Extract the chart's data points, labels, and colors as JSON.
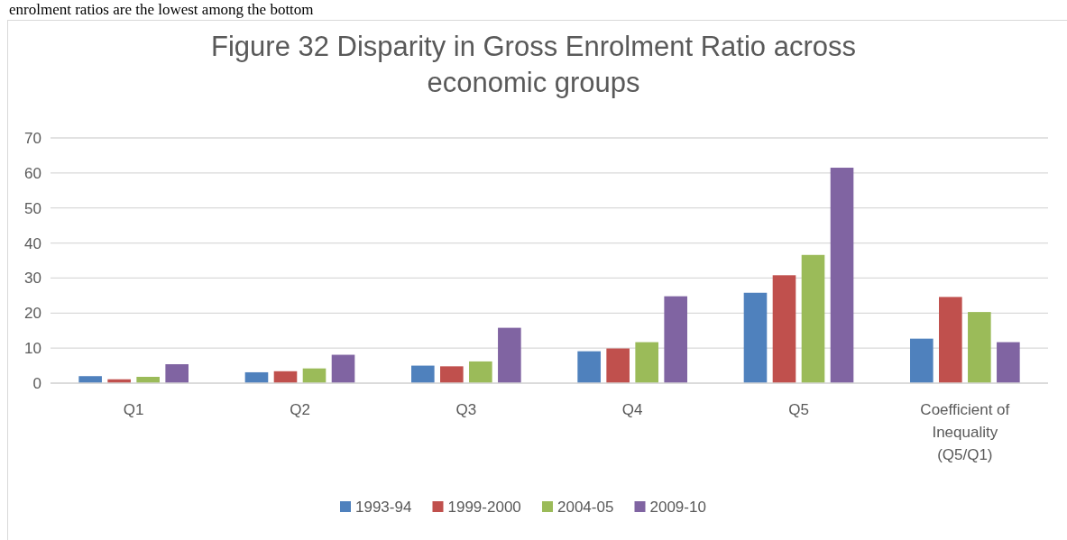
{
  "chart_data": {
    "type": "bar",
    "title": "Figure 32 Disparity in Gross Enrolment Ratio across economic groups",
    "annotations": [
      "enrolment ratios are the lowest among the bottom"
    ],
    "categories": [
      "Q1",
      "Q2",
      "Q3",
      "Q4",
      "Q5",
      "Coefficient of Inequality (Q5/Q1)"
    ],
    "series": [
      {
        "name": "1993-94",
        "color": "#4f81bd",
        "values": [
          2.0,
          3.1,
          5.0,
          9.1,
          25.8,
          12.7
        ]
      },
      {
        "name": "1999-2000",
        "color": "#c0504d",
        "values": [
          1.1,
          3.4,
          4.8,
          9.9,
          30.8,
          24.6
        ]
      },
      {
        "name": "2004-05",
        "color": "#9bbb59",
        "values": [
          1.8,
          4.2,
          6.2,
          11.7,
          36.6,
          20.3
        ]
      },
      {
        "name": "2009-10",
        "color": "#8064a2",
        "values": [
          5.4,
          8.1,
          15.8,
          24.8,
          61.5,
          11.7
        ]
      }
    ],
    "ylim": [
      0,
      70
    ],
    "yticks": [
      0,
      10,
      20,
      30,
      40,
      50,
      60,
      70
    ],
    "grid": "y",
    "legend": "bottom"
  }
}
